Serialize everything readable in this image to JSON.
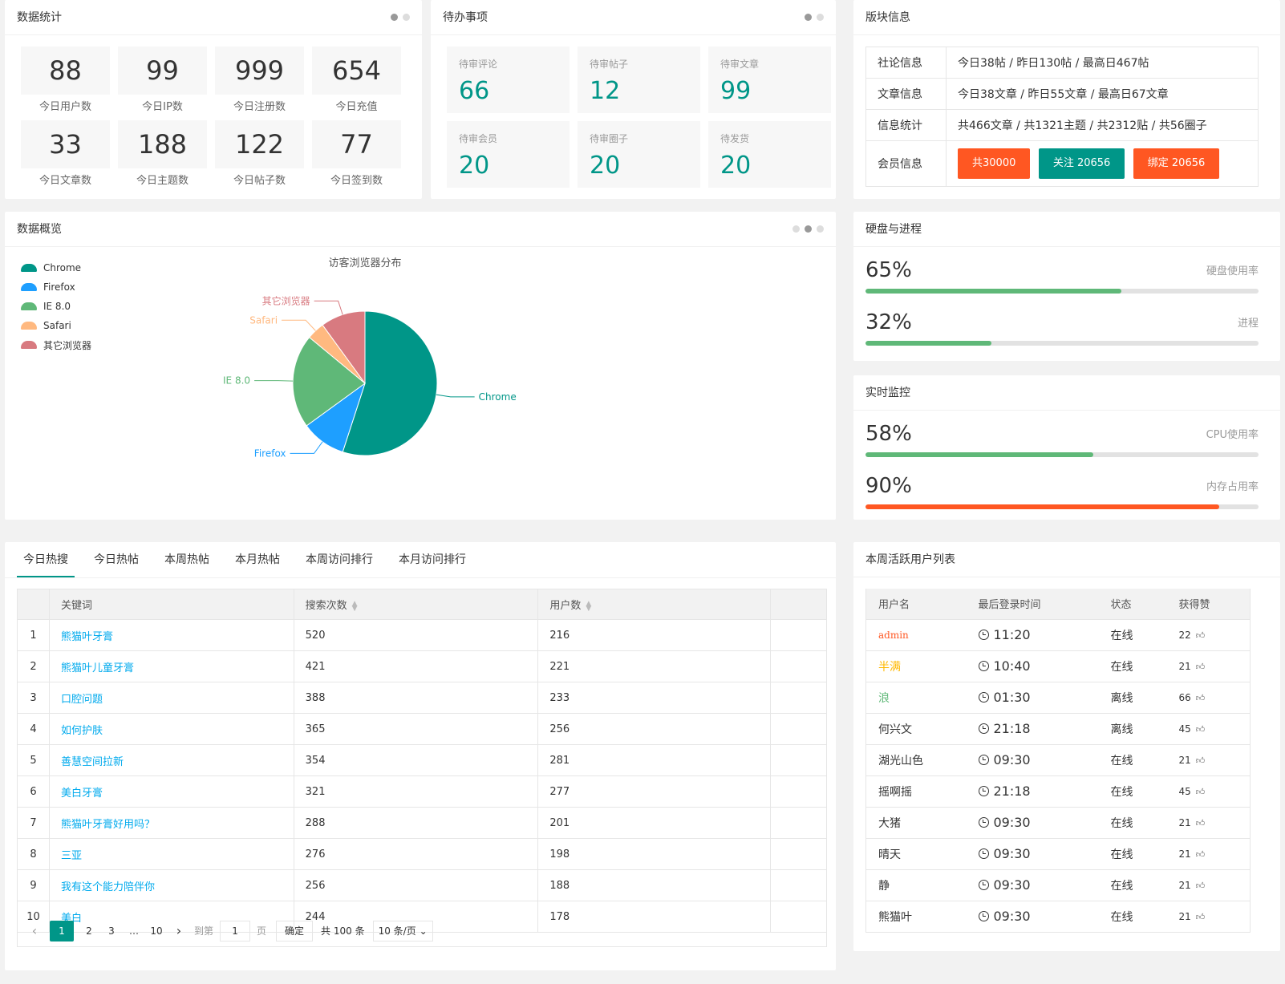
{
  "stats": {
    "title": "数据统计",
    "items": [
      {
        "value": "88",
        "label": "今日用户数"
      },
      {
        "value": "99",
        "label": "今日IP数"
      },
      {
        "value": "999",
        "label": "今日注册数"
      },
      {
        "value": "654",
        "label": "今日充值"
      },
      {
        "value": "33",
        "label": "今日文章数"
      },
      {
        "value": "188",
        "label": "今日主题数"
      },
      {
        "value": "122",
        "label": "今日帖子数"
      },
      {
        "value": "77",
        "label": "今日签到数"
      }
    ]
  },
  "todo": {
    "title": "待办事项",
    "items": [
      {
        "label": "待审评论",
        "value": "66"
      },
      {
        "label": "待审帖子",
        "value": "12"
      },
      {
        "label": "待审文章",
        "value": "99"
      },
      {
        "label": "待审会员",
        "value": "20"
      },
      {
        "label": "待审圈子",
        "value": "20"
      },
      {
        "label": "待发货",
        "value": "20"
      }
    ]
  },
  "forum": {
    "title": "版块信息",
    "rows": [
      {
        "key": "社论信息",
        "value": "今日38帖 / 昨日130帖 / 最高日467帖"
      },
      {
        "key": "文章信息",
        "value": "今日38文章 / 昨日55文章 / 最高日67文章"
      },
      {
        "key": "信息统计",
        "value": "共466文章 / 共1321主题 / 共2312贴 / 共56圈子"
      }
    ],
    "member_key": "会员信息",
    "member_buttons": [
      "共30000",
      "关注 20656",
      "绑定 20656"
    ],
    "colors": {
      "red": "#ff5722",
      "green": "#009688"
    }
  },
  "overview": {
    "title": "数据概览"
  },
  "chart_data": {
    "type": "pie",
    "title": "访客浏览器分布",
    "legend_position": "top-left",
    "categories": [
      "Chrome",
      "Firefox",
      "IE 8.0",
      "Safari",
      "其它浏览器"
    ],
    "values": [
      55,
      10,
      21,
      4,
      10
    ],
    "colors": [
      "#009688",
      "#1e9fff",
      "#5fb878",
      "#ffb980",
      "#d87a80"
    ]
  },
  "disk": {
    "title": "硬盘与进程",
    "items": [
      {
        "pct": "65%",
        "label": "硬盘使用率",
        "value": 65,
        "color": "#5fb878"
      },
      {
        "pct": "32%",
        "label": "进程",
        "value": 32,
        "color": "#5fb878"
      }
    ]
  },
  "monitor": {
    "title": "实时监控",
    "items": [
      {
        "pct": "58%",
        "label": "CPU使用率",
        "value": 58,
        "color": "#5fb878"
      },
      {
        "pct": "90%",
        "label": "内存占用率",
        "value": 90,
        "color": "#ff5722"
      }
    ]
  },
  "hot": {
    "tabs": [
      "今日热搜",
      "今日热帖",
      "本周热帖",
      "本月热帖",
      "本周访问排行",
      "本月访问排行"
    ],
    "columns": [
      "关键词",
      "搜索次数",
      "用户数"
    ],
    "sort_icon": "sort-icon",
    "rows": [
      {
        "n": "1",
        "kw": "熊猫叶牙膏",
        "count": "520",
        "users": "216"
      },
      {
        "n": "2",
        "kw": "熊猫叶儿童牙膏",
        "count": "421",
        "users": "221"
      },
      {
        "n": "3",
        "kw": "口腔问题",
        "count": "388",
        "users": "233"
      },
      {
        "n": "4",
        "kw": "如何护肤",
        "count": "365",
        "users": "256"
      },
      {
        "n": "5",
        "kw": "善慧空间拉新",
        "count": "354",
        "users": "281"
      },
      {
        "n": "6",
        "kw": "美白牙膏",
        "count": "321",
        "users": "277"
      },
      {
        "n": "7",
        "kw": "熊猫叶牙膏好用吗？",
        "count": "288",
        "users": "201"
      },
      {
        "n": "8",
        "kw": "三亚",
        "count": "276",
        "users": "198"
      },
      {
        "n": "9",
        "kw": "我有这个能力陪伴你",
        "count": "256",
        "users": "188"
      },
      {
        "n": "10",
        "kw": "美白",
        "count": "244",
        "users": "178"
      }
    ],
    "pager": {
      "pages": [
        "1",
        "2",
        "3",
        "…",
        "10"
      ],
      "goto": "到第",
      "goto_value": "1",
      "page_word": "页",
      "confirm": "确定",
      "total": "共 100 条",
      "per_page": "10 条/页"
    }
  },
  "users": {
    "title": "本周活跃用户列表",
    "columns": [
      "用户名",
      "最后登录时间",
      "状态",
      "获得赞"
    ],
    "rows": [
      {
        "name": "admin",
        "time": "11:20",
        "status": "在线",
        "likes": "22",
        "color": "#ff5722"
      },
      {
        "name": "半满",
        "time": "10:40",
        "status": "在线",
        "likes": "21",
        "color": "#ffb800"
      },
      {
        "name": "浪",
        "time": "01:30",
        "status": "离线",
        "likes": "66",
        "color": "#5fb878"
      },
      {
        "name": "何兴文",
        "time": "21:18",
        "status": "离线",
        "likes": "45",
        "color": "#333333"
      },
      {
        "name": "湖光山色",
        "time": "09:30",
        "status": "在线",
        "likes": "21",
        "color": "#333333"
      },
      {
        "name": "摇啊摇",
        "time": "21:18",
        "status": "在线",
        "likes": "45",
        "color": "#333333"
      },
      {
        "name": "大猪",
        "time": "09:30",
        "status": "在线",
        "likes": "21",
        "color": "#333333"
      },
      {
        "name": "晴天",
        "time": "09:30",
        "status": "在线",
        "likes": "21",
        "color": "#333333"
      },
      {
        "name": "静",
        "time": "09:30",
        "status": "在线",
        "likes": "21",
        "color": "#333333"
      },
      {
        "name": "熊猫叶",
        "time": "09:30",
        "status": "在线",
        "likes": "21",
        "color": "#333333"
      }
    ]
  }
}
